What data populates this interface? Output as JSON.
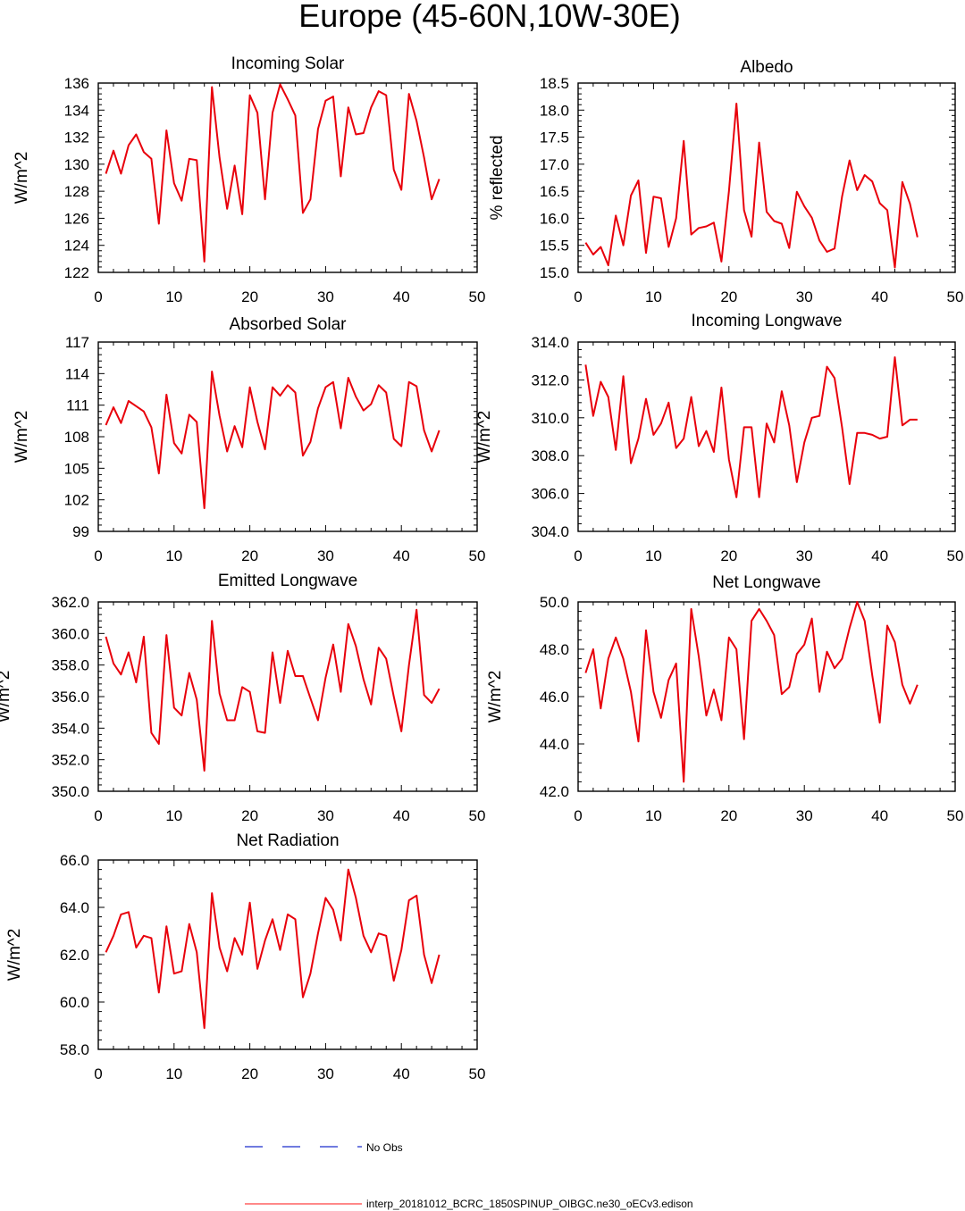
{
  "figure": {
    "title": "Europe (45-60N,10W-30E)"
  },
  "legend": {
    "entries": [
      {
        "label": "No Obs",
        "color": "#1a2ccc",
        "style": "dashed"
      },
      {
        "label": "interp_20181012_BCRC_1850SPINUP_OIBGC.ne30_oECv3.edison",
        "color": "#ff2020",
        "style": "solid"
      }
    ]
  },
  "chart_data": [
    {
      "type": "line",
      "title": "Incoming Solar",
      "ylabel": "W/m^2",
      "xlim": [
        0,
        50
      ],
      "ylim": [
        122,
        136
      ],
      "xticks": [
        0,
        10,
        20,
        30,
        40,
        50
      ],
      "yticks": [
        "122",
        "124",
        "126",
        "128",
        "130",
        "132",
        "134",
        "136"
      ],
      "color": "#e8000b",
      "x": [
        1,
        2,
        3,
        4,
        5,
        6,
        7,
        8,
        9,
        10,
        11,
        12,
        13,
        14,
        15,
        16,
        17,
        18,
        19,
        20,
        21,
        22,
        23,
        24,
        25,
        26,
        27,
        28,
        29,
        30,
        31,
        32,
        33,
        34,
        35,
        36,
        37,
        38,
        39,
        40,
        41,
        42,
        43,
        44,
        45
      ],
      "y": [
        129.3,
        131.0,
        129.3,
        131.4,
        132.2,
        130.9,
        130.4,
        125.6,
        132.5,
        128.6,
        127.3,
        130.4,
        130.3,
        122.8,
        135.7,
        130.5,
        126.7,
        129.9,
        126.3,
        135.1,
        133.8,
        127.4,
        133.8,
        135.9,
        134.8,
        133.6,
        126.4,
        127.4,
        132.6,
        134.7,
        135.0,
        129.1,
        134.2,
        132.2,
        132.3,
        134.2,
        135.4,
        135.1,
        129.6,
        128.1,
        135.2,
        133.2,
        130.5,
        127.4,
        128.9
      ]
    },
    {
      "type": "line",
      "title": "Albedo",
      "ylabel": "% reflected",
      "xlim": [
        0,
        50
      ],
      "ylim": [
        15.0,
        18.5
      ],
      "xticks": [
        0,
        10,
        20,
        30,
        40,
        50
      ],
      "yticks": [
        "15.0",
        "15.5",
        "16.0",
        "16.5",
        "17.0",
        "17.5",
        "18.0",
        "18.5"
      ],
      "color": "#e8000b",
      "x": [
        1,
        2,
        3,
        4,
        5,
        6,
        7,
        8,
        9,
        10,
        11,
        12,
        13,
        14,
        15,
        16,
        17,
        18,
        19,
        20,
        21,
        22,
        23,
        24,
        25,
        26,
        27,
        28,
        29,
        30,
        31,
        32,
        33,
        34,
        35,
        36,
        37,
        38,
        39,
        40,
        41,
        42,
        43,
        44,
        45
      ],
      "y": [
        15.55,
        15.33,
        15.47,
        15.13,
        16.05,
        15.5,
        16.42,
        16.7,
        15.36,
        16.4,
        16.37,
        15.47,
        16.0,
        17.43,
        15.7,
        15.82,
        15.85,
        15.92,
        15.2,
        16.5,
        18.12,
        16.15,
        15.66,
        17.4,
        16.12,
        15.95,
        15.9,
        15.45,
        16.49,
        16.22,
        16.01,
        15.59,
        15.38,
        15.44,
        16.4,
        17.07,
        16.52,
        16.8,
        16.68,
        16.28,
        16.15,
        15.09,
        16.67,
        16.27,
        15.65
      ]
    },
    {
      "type": "line",
      "title": "Absorbed Solar",
      "ylabel": "W/m^2",
      "xlim": [
        0,
        50
      ],
      "ylim": [
        99,
        117
      ],
      "xticks": [
        0,
        10,
        20,
        30,
        40,
        50
      ],
      "yticks": [
        "99",
        "102",
        "105",
        "108",
        "111",
        "114",
        "117"
      ],
      "color": "#e8000b",
      "x": [
        1,
        2,
        3,
        4,
        5,
        6,
        7,
        8,
        9,
        10,
        11,
        12,
        13,
        14,
        15,
        16,
        17,
        18,
        19,
        20,
        21,
        22,
        23,
        24,
        25,
        26,
        27,
        28,
        29,
        30,
        31,
        32,
        33,
        34,
        35,
        36,
        37,
        38,
        39,
        40,
        41,
        42,
        43,
        44,
        45
      ],
      "y": [
        109.1,
        110.8,
        109.3,
        111.4,
        110.9,
        110.4,
        108.9,
        104.5,
        112.0,
        107.4,
        106.4,
        110.1,
        109.4,
        101.2,
        114.2,
        110.0,
        106.6,
        109.0,
        107.0,
        112.7,
        109.4,
        106.8,
        112.7,
        111.9,
        112.9,
        112.2,
        106.2,
        107.5,
        110.7,
        112.7,
        113.2,
        108.8,
        113.6,
        111.8,
        110.5,
        111.1,
        112.9,
        112.2,
        107.8,
        107.1,
        113.2,
        112.8,
        108.6,
        106.6,
        108.6
      ]
    },
    {
      "type": "line",
      "title": "Incoming Longwave",
      "ylabel": "W/m^2",
      "xlim": [
        0,
        50
      ],
      "ylim": [
        304.0,
        314.0
      ],
      "xticks": [
        0,
        10,
        20,
        30,
        40,
        50
      ],
      "yticks": [
        "304.0",
        "306.0",
        "308.0",
        "310.0",
        "312.0",
        "314.0"
      ],
      "color": "#e8000b",
      "x": [
        1,
        2,
        3,
        4,
        5,
        6,
        7,
        8,
        9,
        10,
        11,
        12,
        13,
        14,
        15,
        16,
        17,
        18,
        19,
        20,
        21,
        22,
        23,
        24,
        25,
        26,
        27,
        28,
        29,
        30,
        31,
        32,
        33,
        34,
        35,
        36,
        37,
        38,
        39,
        40,
        41,
        42,
        43,
        44,
        45
      ],
      "y": [
        312.8,
        310.1,
        311.9,
        311.1,
        308.3,
        312.2,
        307.6,
        308.9,
        311.0,
        309.1,
        309.7,
        310.8,
        308.4,
        308.9,
        311.1,
        308.5,
        309.3,
        308.2,
        311.6,
        307.8,
        305.8,
        309.5,
        309.5,
        305.8,
        309.7,
        308.7,
        311.4,
        309.6,
        306.6,
        308.7,
        310.0,
        310.1,
        312.7,
        312.1,
        309.5,
        306.5,
        309.2,
        309.2,
        309.1,
        308.9,
        309.0,
        313.2,
        309.6,
        309.9,
        309.9
      ]
    },
    {
      "type": "line",
      "title": "Emitted Longwave",
      "ylabel": "W/m^2",
      "xlim": [
        0,
        50
      ],
      "ylim": [
        350.0,
        362.0
      ],
      "xticks": [
        0,
        10,
        20,
        30,
        40,
        50
      ],
      "yticks": [
        "350.0",
        "352.0",
        "354.0",
        "356.0",
        "358.0",
        "360.0",
        "362.0"
      ],
      "color": "#e8000b",
      "x": [
        1,
        2,
        3,
        4,
        5,
        6,
        7,
        8,
        9,
        10,
        11,
        12,
        13,
        14,
        15,
        16,
        17,
        18,
        19,
        20,
        21,
        22,
        23,
        24,
        25,
        26,
        27,
        28,
        29,
        30,
        31,
        32,
        33,
        34,
        35,
        36,
        37,
        38,
        39,
        40,
        41,
        42,
        43,
        44,
        45
      ],
      "y": [
        359.8,
        358.1,
        357.4,
        358.8,
        356.9,
        359.8,
        353.7,
        353.0,
        359.9,
        355.3,
        354.8,
        357.5,
        355.8,
        351.3,
        360.8,
        356.2,
        354.5,
        354.5,
        356.6,
        356.3,
        353.8,
        353.7,
        358.8,
        355.6,
        358.9,
        357.3,
        357.3,
        355.9,
        354.5,
        357.2,
        359.3,
        356.3,
        360.6,
        359.2,
        357.1,
        355.5,
        359.1,
        358.4,
        356.0,
        353.8,
        358.0,
        361.5,
        356.1,
        355.6,
        356.5
      ]
    },
    {
      "type": "line",
      "title": "Net Longwave",
      "ylabel": "W/m^2",
      "xlim": [
        0,
        50
      ],
      "ylim": [
        42.0,
        50.0
      ],
      "xticks": [
        0,
        10,
        20,
        30,
        40,
        50
      ],
      "yticks": [
        "42.0",
        "44.0",
        "46.0",
        "48.0",
        "50.0"
      ],
      "color": "#e8000b",
      "x": [
        1,
        2,
        3,
        4,
        5,
        6,
        7,
        8,
        9,
        10,
        11,
        12,
        13,
        14,
        15,
        16,
        17,
        18,
        19,
        20,
        21,
        22,
        23,
        24,
        25,
        26,
        27,
        28,
        29,
        30,
        31,
        32,
        33,
        34,
        35,
        36,
        37,
        38,
        39,
        40,
        41,
        42,
        43,
        44,
        45
      ],
      "y": [
        47.0,
        48.0,
        45.5,
        47.6,
        48.5,
        47.6,
        46.2,
        44.1,
        48.8,
        46.2,
        45.1,
        46.7,
        47.4,
        42.4,
        49.7,
        47.7,
        45.2,
        46.3,
        45.0,
        48.5,
        48.0,
        44.2,
        49.2,
        49.7,
        49.2,
        48.6,
        46.1,
        46.4,
        47.8,
        48.2,
        49.3,
        46.2,
        47.9,
        47.2,
        47.6,
        48.9,
        50.0,
        49.2,
        46.9,
        44.9,
        49.0,
        48.3,
        46.5,
        45.7,
        46.5
      ]
    },
    {
      "type": "line",
      "title": "Net Radiation",
      "ylabel": "W/m^2",
      "xlim": [
        0,
        50
      ],
      "ylim": [
        58.0,
        66.0
      ],
      "xticks": [
        0,
        10,
        20,
        30,
        40,
        50
      ],
      "yticks": [
        "58.0",
        "60.0",
        "62.0",
        "64.0",
        "66.0"
      ],
      "color": "#e8000b",
      "x": [
        1,
        2,
        3,
        4,
        5,
        6,
        7,
        8,
        9,
        10,
        11,
        12,
        13,
        14,
        15,
        16,
        17,
        18,
        19,
        20,
        21,
        22,
        23,
        24,
        25,
        26,
        27,
        28,
        29,
        30,
        31,
        32,
        33,
        34,
        35,
        36,
        37,
        38,
        39,
        40,
        41,
        42,
        43,
        44,
        45
      ],
      "y": [
        62.1,
        62.8,
        63.7,
        63.8,
        62.3,
        62.8,
        62.7,
        60.4,
        63.2,
        61.2,
        61.3,
        63.3,
        62.1,
        58.9,
        64.6,
        62.3,
        61.3,
        62.7,
        62.0,
        64.2,
        61.4,
        62.6,
        63.5,
        62.2,
        63.7,
        63.5,
        60.2,
        61.2,
        62.9,
        64.4,
        63.9,
        62.6,
        65.6,
        64.4,
        62.8,
        62.1,
        62.9,
        62.8,
        60.9,
        62.2,
        64.3,
        64.5,
        62.0,
        60.8,
        62.0
      ]
    }
  ]
}
